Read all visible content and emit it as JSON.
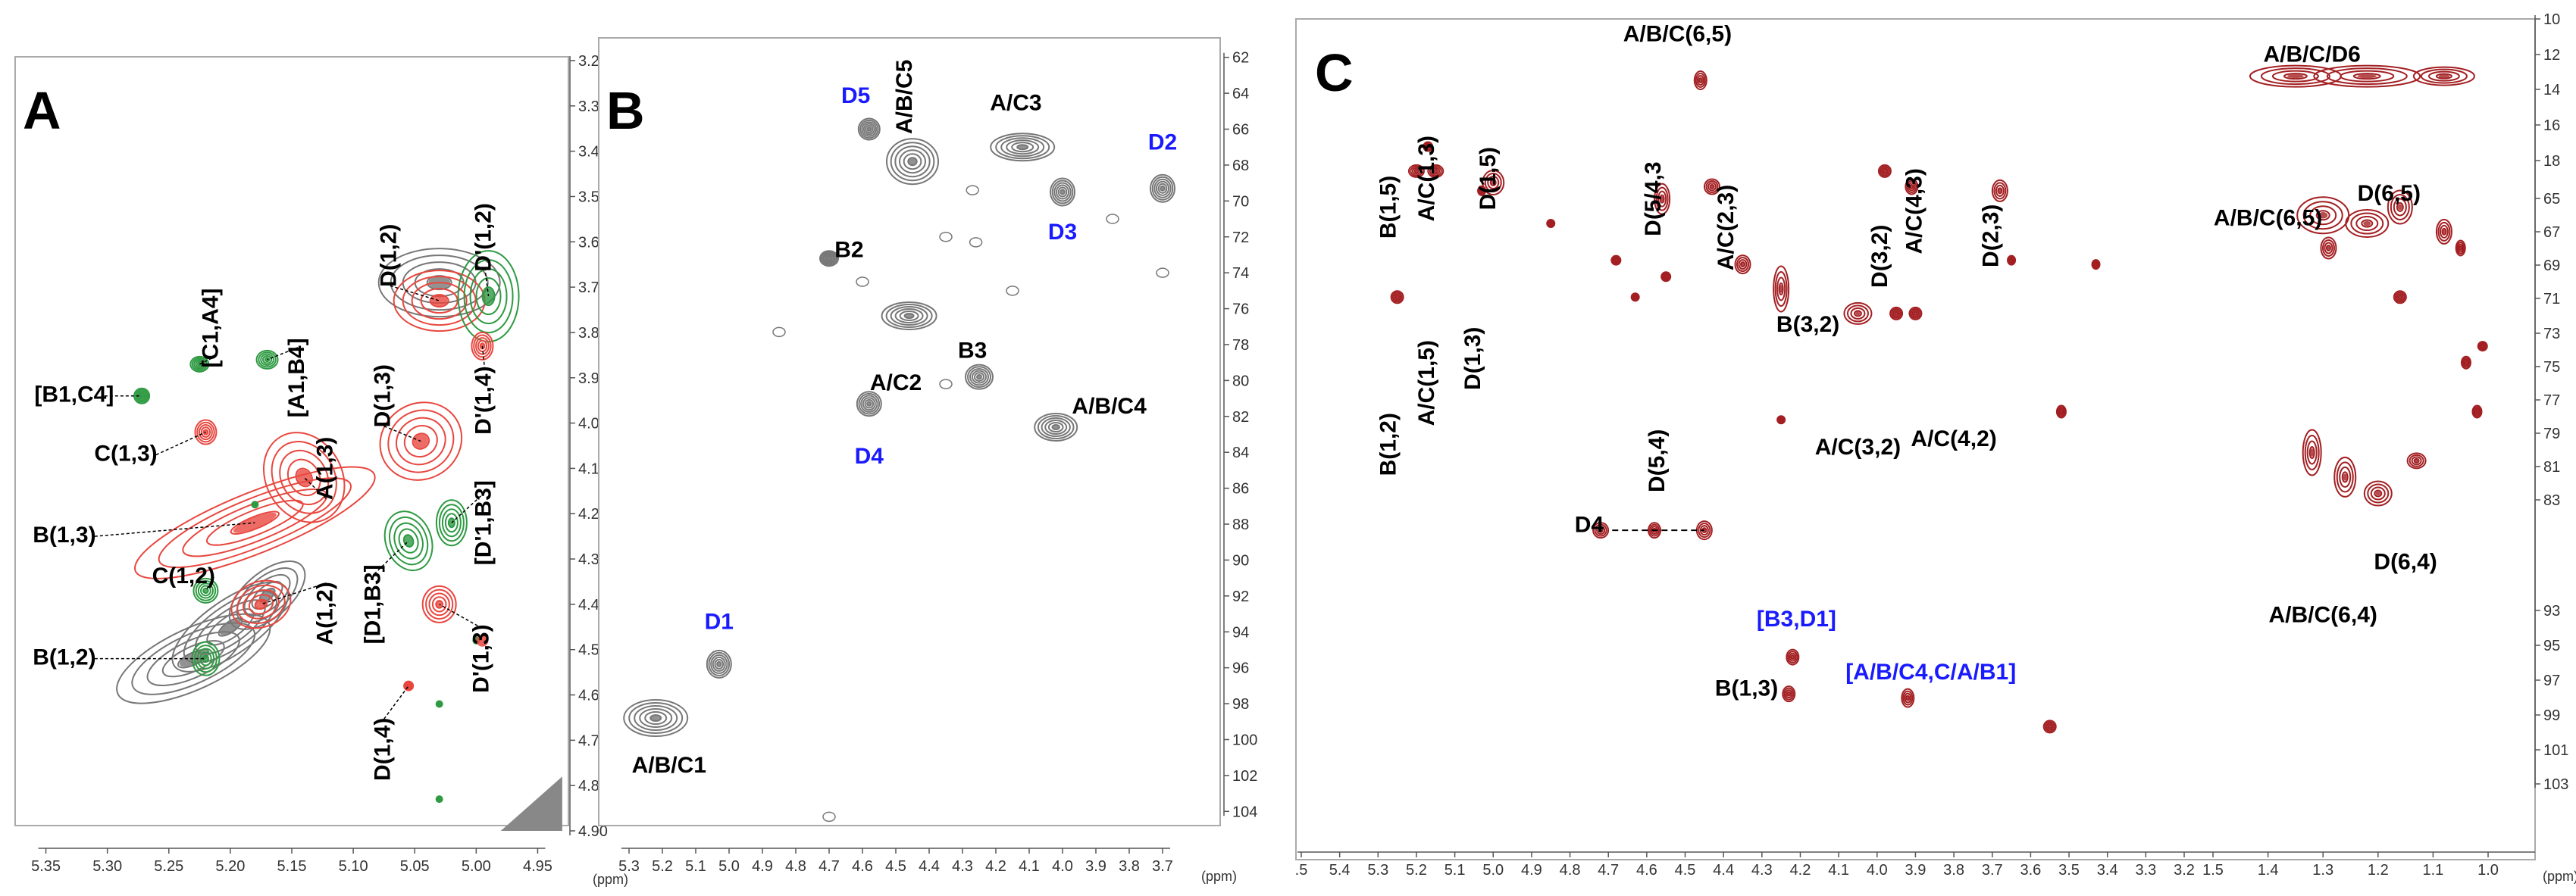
{
  "chart_data": [
    {
      "panel": "A",
      "type": "heatmap",
      "title": "A",
      "xlabel": "(ppm)",
      "ylabel": "",
      "x_range": [
        5.375,
        4.925
      ],
      "y_range": [
        3.2,
        4.9
      ],
      "x_ticks": [
        "5.35",
        "5.30",
        "5.25",
        "5.20",
        "5.15",
        "5.10",
        "5.05",
        "5.00",
        "4.95"
      ],
      "y_ticks": [
        "3.20",
        "3.30",
        "3.40",
        "3.50",
        "3.60",
        "3.70",
        "3.80",
        "3.90",
        "4.00",
        "4.10",
        "4.20",
        "4.30",
        "4.40",
        "4.50",
        "4.60",
        "4.70",
        "4.80",
        "4.90"
      ],
      "legend": "none",
      "peaks": [
        {
          "x": 5.272,
          "y": 3.94,
          "color": "green",
          "label": "[B1,C4]",
          "lx": 5.327,
          "ly": 3.94,
          "rot": 0
        },
        {
          "x": 5.22,
          "y": 4.02,
          "color": "red",
          "label": "C(1,3)",
          "lx": 5.285,
          "ly": 4.07,
          "rot": 0
        },
        {
          "x": 5.225,
          "y": 3.87,
          "color": "green",
          "label": "[C1,A4]",
          "lx": 5.215,
          "ly": 3.79,
          "rot": -90
        },
        {
          "x": 5.17,
          "y": 3.86,
          "color": "green",
          "label": "[A1,B4]",
          "lx": 5.145,
          "ly": 3.9,
          "rot": -90
        },
        {
          "x": 5.18,
          "y": 4.22,
          "color": "red",
          "label": "B(1,3)",
          "lx": 5.335,
          "ly": 4.25,
          "rot": 0
        },
        {
          "x": 5.14,
          "y": 4.12,
          "color": "red",
          "label": "A(1,3)",
          "lx": 5.122,
          "ly": 4.1,
          "rot": -90
        },
        {
          "x": 5.22,
          "y": 4.37,
          "color": "green",
          "label": "C(1,2)",
          "lx": 5.238,
          "ly": 4.34,
          "rot": 0
        },
        {
          "x": 5.175,
          "y": 4.4,
          "color": "red",
          "label": "A(1,2)",
          "lx": 5.122,
          "ly": 4.42,
          "rot": -90
        },
        {
          "x": 5.22,
          "y": 4.52,
          "color": "green",
          "label": "B(1,2)",
          "lx": 5.335,
          "ly": 4.52,
          "rot": 0
        },
        {
          "x": 5.03,
          "y": 3.73,
          "color": "red",
          "label": "D(1,2)",
          "lx": 5.07,
          "ly": 3.63,
          "rot": -90
        },
        {
          "x": 4.99,
          "y": 3.72,
          "color": "green",
          "label": "D'(1,2)",
          "lx": 4.993,
          "ly": 3.59,
          "rot": -90
        },
        {
          "x": 4.995,
          "y": 3.83,
          "color": "red",
          "label": "D'(1,4)",
          "lx": 4.993,
          "ly": 3.95,
          "rot": -90
        },
        {
          "x": 5.045,
          "y": 4.04,
          "color": "red",
          "label": "D(1,3)",
          "lx": 5.075,
          "ly": 3.94,
          "rot": -90
        },
        {
          "x": 5.02,
          "y": 4.22,
          "color": "green",
          "label": "[D'1,B3]",
          "lx": 4.993,
          "ly": 4.22,
          "rot": -90
        },
        {
          "x": 5.055,
          "y": 4.26,
          "color": "green",
          "label": "[D1,B3]",
          "lx": 5.083,
          "ly": 4.4,
          "rot": -90
        },
        {
          "x": 5.03,
          "y": 4.4,
          "color": "red",
          "label": "D'(1,3)",
          "lx": 4.995,
          "ly": 4.52,
          "rot": -90
        },
        {
          "x": 5.055,
          "y": 4.58,
          "color": "red",
          "label": "D(1,4)",
          "lx": 5.075,
          "ly": 4.72,
          "rot": -90
        }
      ]
    },
    {
      "panel": "B",
      "type": "heatmap",
      "title": "B",
      "xlabel": "(ppm)",
      "ylabel": "",
      "x_range": [
        5.35,
        3.55
      ],
      "y_range": [
        61,
        105
      ],
      "x_ticks": [
        "5.3",
        "5.2",
        "5.1",
        "5.0",
        "4.9",
        "4.8",
        "4.7",
        "4.6",
        "4.5",
        "4.4",
        "4.3",
        "4.2",
        "4.1",
        "4.0",
        "3.9",
        "3.8",
        "3.7"
      ],
      "y_ticks": [
        "62",
        "64",
        "66",
        "68",
        "70",
        "72",
        "74",
        "76",
        "78",
        "80",
        "82",
        "84",
        "86",
        "88",
        "90",
        "92",
        "94",
        "96",
        "98",
        "100",
        "102",
        "104"
      ],
      "legend": "none",
      "peaks": [
        {
          "x": 5.22,
          "y": 98.8,
          "color": "black",
          "label": "A/B/C1",
          "lx": 5.18,
          "ly": 101.5,
          "rot": 0,
          "blue": false
        },
        {
          "x": 5.03,
          "y": 95.8,
          "color": "black",
          "label": "D1",
          "lx": 5.03,
          "ly": 93.5,
          "rot": 0,
          "blue": true
        },
        {
          "x": 4.58,
          "y": 66.0,
          "color": "black",
          "label": "D5",
          "lx": 4.62,
          "ly": 64.2,
          "rot": 0,
          "blue": true
        },
        {
          "x": 4.45,
          "y": 67.8,
          "color": "black",
          "label": "A/B/C5",
          "lx": 4.47,
          "ly": 64.2,
          "rot": -90,
          "blue": false
        },
        {
          "x": 4.12,
          "y": 67.0,
          "color": "black",
          "label": "A/C3",
          "lx": 4.14,
          "ly": 64.6,
          "rot": 0,
          "blue": false
        },
        {
          "x": 4.0,
          "y": 69.5,
          "color": "black",
          "label": "D3",
          "lx": 4.0,
          "ly": 71.8,
          "rot": 0,
          "blue": true
        },
        {
          "x": 3.7,
          "y": 69.3,
          "color": "black",
          "label": "D2",
          "lx": 3.7,
          "ly": 66.8,
          "rot": 0,
          "blue": true
        },
        {
          "x": 4.46,
          "y": 76.4,
          "color": "black",
          "label": "A/C2",
          "lx": 4.5,
          "ly": 80.2,
          "rot": 0,
          "blue": false
        },
        {
          "x": 4.25,
          "y": 79.8,
          "color": "black",
          "label": "B3",
          "lx": 4.27,
          "ly": 78.4,
          "rot": 0,
          "blue": false
        },
        {
          "x": 4.02,
          "y": 82.6,
          "color": "black",
          "label": "A/B/C4",
          "lx": 3.86,
          "ly": 81.5,
          "rot": 0,
          "blue": false
        },
        {
          "x": 4.58,
          "y": 81.3,
          "color": "black",
          "label": "D4",
          "lx": 4.58,
          "ly": 84.3,
          "rot": 0,
          "blue": true
        },
        {
          "x": 4.7,
          "y": 73.2,
          "color": "black",
          "label": "B2",
          "lx": 4.64,
          "ly": 72.8,
          "rot": 0,
          "blue": false
        }
      ]
    },
    {
      "panel": "C",
      "type": "heatmap",
      "title": "C",
      "xlabel": "(ppm)",
      "ylabel": "",
      "x_range": [
        5.5,
        0.95
      ],
      "y_range": [
        10,
        103.5
      ],
      "x_ticks": [
        ".5",
        "5.4",
        "5.3",
        "5.2",
        "5.1",
        "5.0",
        "4.9",
        "4.8",
        "4.7",
        "4.6",
        "4.5",
        "4.4",
        "4.3",
        "4.2",
        "4.1",
        "4.0",
        "3.9",
        "3.8",
        "3.7",
        "3.6",
        "3.5",
        "3.4",
        "3.3",
        "3.2",
        "1.5",
        "1.4",
        "1.3",
        "1.2",
        "1.1",
        "1.0"
      ],
      "y_ticks": [
        "10",
        "12",
        "14",
        "16",
        "18",
        "65",
        "67",
        "69",
        "71",
        "73",
        "75",
        "77",
        "79",
        "81",
        "83",
        "93",
        "95",
        "97",
        "99",
        "101",
        "103"
      ],
      "legend": "none",
      "labels": [
        {
          "text": "A/B/C(6,5)",
          "x": 4.52,
          "y": 12.0,
          "rot": 0,
          "blue": false
        },
        {
          "text": "B(1,5)",
          "x": 5.27,
          "y": 33.0,
          "rot": -90,
          "blue": false
        },
        {
          "text": "A/C(1,3)",
          "x": 5.17,
          "y": 29.5,
          "rot": -90,
          "blue": false
        },
        {
          "text": "D(1,5)",
          "x": 5.01,
          "y": 29.5,
          "rot": -90,
          "blue": false
        },
        {
          "text": "D(5/4,3",
          "x": 4.58,
          "y": 32.0,
          "rot": -90,
          "blue": false
        },
        {
          "text": "A/C(2,3)",
          "x": 4.39,
          "y": 35.5,
          "rot": -90,
          "blue": false
        },
        {
          "text": "D(3,2)",
          "x": 3.99,
          "y": 39.0,
          "rot": -90,
          "blue": false
        },
        {
          "text": "A/C(4,3)",
          "x": 3.9,
          "y": 33.5,
          "rot": -90,
          "blue": false
        },
        {
          "text": "D(2,3)",
          "x": 3.7,
          "y": 36.5,
          "rot": -90,
          "blue": false
        },
        {
          "text": "A/C(1,5)",
          "x": 5.17,
          "y": 54.5,
          "rot": -90,
          "blue": false
        },
        {
          "text": "D(1,3)",
          "x": 5.05,
          "y": 51.5,
          "rot": -90,
          "blue": false
        },
        {
          "text": "B(1,2)",
          "x": 5.27,
          "y": 62.0,
          "rot": -90,
          "blue": false
        },
        {
          "text": "B(3,2)",
          "x": 4.18,
          "y": 47.5,
          "rot": 0,
          "blue": false
        },
        {
          "text": "A/C(3,2)",
          "x": 4.05,
          "y": 62.5,
          "rot": 0,
          "blue": false
        },
        {
          "text": "A/C(4,2)",
          "x": 3.8,
          "y": 61.5,
          "rot": 0,
          "blue": false
        },
        {
          "text": "D(5,4)",
          "x": 4.57,
          "y": 64.0,
          "rot": -90,
          "blue": false
        },
        {
          "text": "D4",
          "x": 4.75,
          "y": 72.0,
          "rot": 0,
          "blue": false
        },
        {
          "text": "[B3,D1]",
          "x": 4.21,
          "y": 83.5,
          "rot": 0,
          "blue": true
        },
        {
          "text": "B(1,3)",
          "x": 4.34,
          "y": 92.0,
          "rot": 0,
          "blue": false
        },
        {
          "text": "[A/B/C4,C/A/B1]",
          "x": 3.86,
          "y": 90.0,
          "rot": 0,
          "blue": true
        },
        {
          "text": "A/B/C/D6",
          "x": 1.32,
          "y": 14.5,
          "rot": 0,
          "blue": false
        },
        {
          "text": "D(6,5)",
          "x": 1.18,
          "y": 31.5,
          "rot": 0,
          "blue": false
        },
        {
          "text": "A/B/C(6,5)",
          "x": 1.4,
          "y": 34.5,
          "rot": 0,
          "blue": false
        },
        {
          "text": "D(6,4)",
          "x": 1.15,
          "y": 76.5,
          "rot": 0,
          "blue": false
        },
        {
          "text": "A/B/C(6,4)",
          "x": 1.3,
          "y": 83.0,
          "rot": 0,
          "blue": false
        }
      ]
    }
  ],
  "colors": {
    "red": "#e8473f",
    "green": "#2e9a42",
    "gray": "#777777",
    "darkred": "#a31f22",
    "blue": "#1a1aff",
    "black": "#000000"
  }
}
